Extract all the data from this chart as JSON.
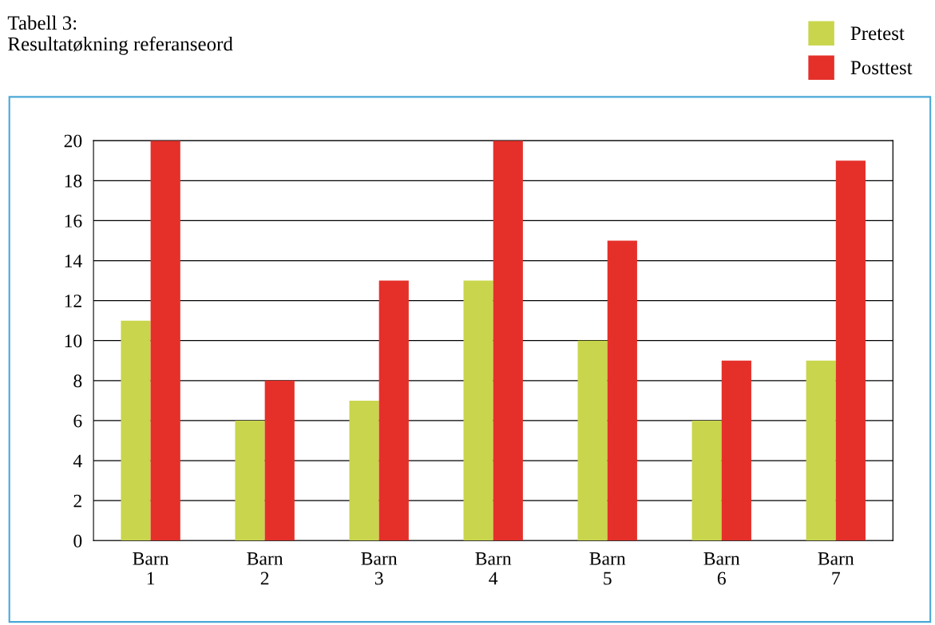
{
  "chart_data": {
    "type": "bar",
    "title": "Tabell 3:\nResultatøkning referanseord",
    "categories": [
      "Barn\n1",
      "Barn\n2",
      "Barn\n3",
      "Barn\n4",
      "Barn\n5",
      "Barn\n6",
      "Barn\n7"
    ],
    "series": [
      {
        "name": "Pretest",
        "color": "#c9d54c",
        "values": [
          11,
          6,
          7,
          13,
          10,
          6,
          9
        ]
      },
      {
        "name": "Posttest",
        "color": "#e5302a",
        "values": [
          20,
          8,
          13,
          20,
          15,
          9,
          19
        ]
      }
    ],
    "ylim": [
      0,
      20
    ],
    "yticks": [
      0,
      2,
      4,
      6,
      8,
      10,
      12,
      14,
      16,
      18,
      20
    ],
    "grid": "y",
    "legend": "top right"
  }
}
